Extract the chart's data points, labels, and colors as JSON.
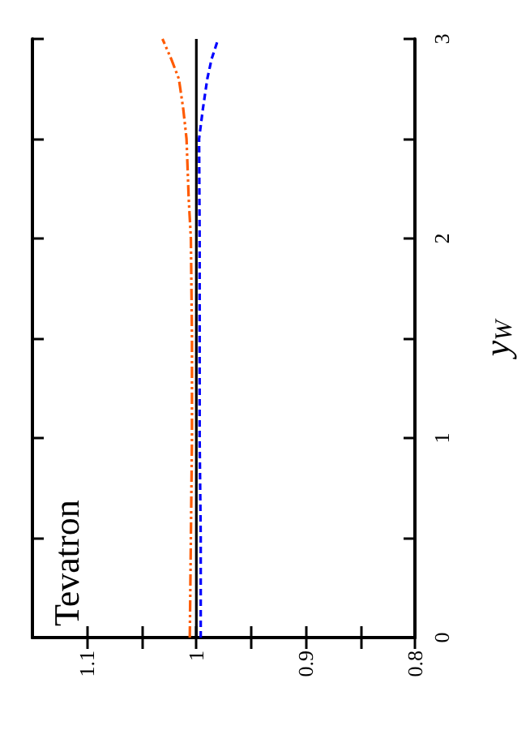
{
  "chart_data": {
    "type": "line",
    "ylabel": "y$_{W}$",
    "annotations": [
      "Tevatron"
    ],
    "xlim": [
      1.15,
      0.8
    ],
    "xticks": [
      {
        "value": 1.1,
        "label": "1.1"
      },
      {
        "value": 1.05,
        "label": null
      },
      1,
      {
        "value": 0.95,
        "label": null
      },
      {
        "value": 0.9,
        "label": "0.9"
      },
      {
        "value": 0.85,
        "label": null
      },
      {
        "value": 0.8,
        "label": "0.8"
      }
    ],
    "ylim": [
      0,
      3
    ],
    "yticks": [
      0,
      {
        "value": 0.5,
        "label": null
      },
      1,
      {
        "value": 1.5,
        "label": null
      },
      2,
      {
        "value": 2.5,
        "label": null
      },
      3
    ],
    "grid": false,
    "marker": "none",
    "series": [
      {
        "color": "#000000",
        "line_style": "solid",
        "x": [
          1,
          1,
          1,
          1,
          1,
          1,
          1
        ],
        "values": [
          0,
          0.5,
          1,
          1.5,
          2,
          2.5,
          3
        ]
      },
      {
        "color": "#ff5a00",
        "line_style": "dashed",
        "x": [
          1.006,
          1.005,
          1.004,
          1.004,
          1.005,
          1.007,
          1.009,
          1.012,
          1.016,
          1.023,
          1.031
        ],
        "values": [
          0,
          0.5,
          1,
          1.5,
          2,
          2.2,
          2.5,
          2.65,
          2.8,
          2.9,
          3
        ]
      },
      {
        "color": "#0000ff",
        "line_style": "dotted",
        "x": [
          0.996,
          0.996,
          0.997,
          0.997,
          0.997,
          0.9975,
          0.994,
          0.99,
          0.986,
          0.98
        ],
        "values": [
          0,
          0.5,
          1,
          1.5,
          2,
          2.5,
          2.65,
          2.8,
          2.9,
          3
        ]
      }
    ]
  }
}
